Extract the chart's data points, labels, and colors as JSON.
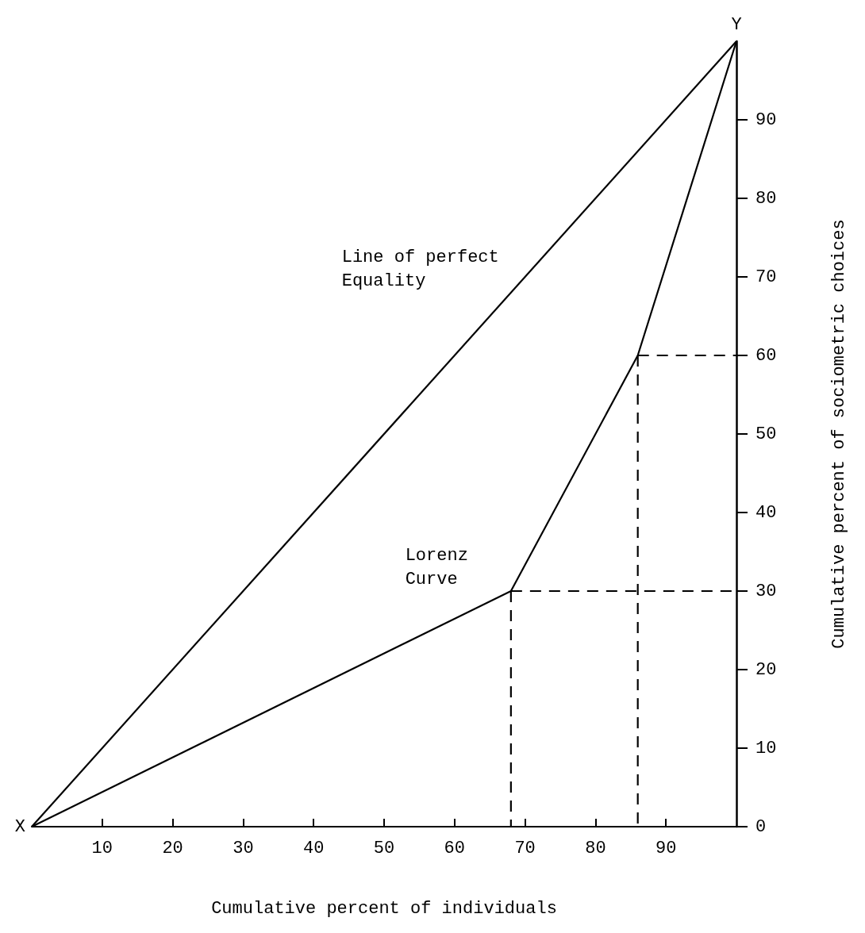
{
  "chart_data": {
    "type": "line",
    "xlabel": "Cumulative percent of individuals",
    "ylabel": "Cumulative percent of sociometric choices",
    "xlim": [
      0,
      100
    ],
    "xticks": [
      10,
      20,
      30,
      40,
      50,
      60,
      70,
      80,
      90
    ],
    "ylim": [
      0,
      100
    ],
    "yticks": [
      0,
      10,
      20,
      30,
      40,
      50,
      60,
      70,
      80,
      90
    ],
    "grid": false,
    "legend": false,
    "marker": "none",
    "series": [
      {
        "name": "Line of perfect\nEquality",
        "color": "#000000",
        "x": [
          0,
          100
        ],
        "values": [
          0,
          100
        ]
      },
      {
        "name": "Lorenz\nCurve",
        "color": "#000000",
        "x": [
          0,
          68,
          86,
          100
        ],
        "values": [
          0,
          30,
          60,
          100
        ]
      },
      {
        "color": "#000000",
        "line_style": "dashed",
        "x": [
          68,
          68
        ],
        "values": [
          30,
          0
        ]
      },
      {
        "color": "#000000",
        "line_style": "dashed",
        "x": [
          68,
          100
        ],
        "values": [
          30,
          30
        ]
      },
      {
        "color": "#000000",
        "line_style": "dashed",
        "x": [
          86,
          86
        ],
        "values": [
          60,
          0
        ]
      },
      {
        "color": "#000000",
        "line_style": "dashed",
        "x": [
          86,
          100
        ],
        "values": [
          60,
          60
        ]
      }
    ],
    "annotations": [
      {
        "text": "X",
        "x": 0,
        "y": 0
      },
      {
        "text": "Y",
        "x": 100,
        "y": 100
      }
    ]
  }
}
